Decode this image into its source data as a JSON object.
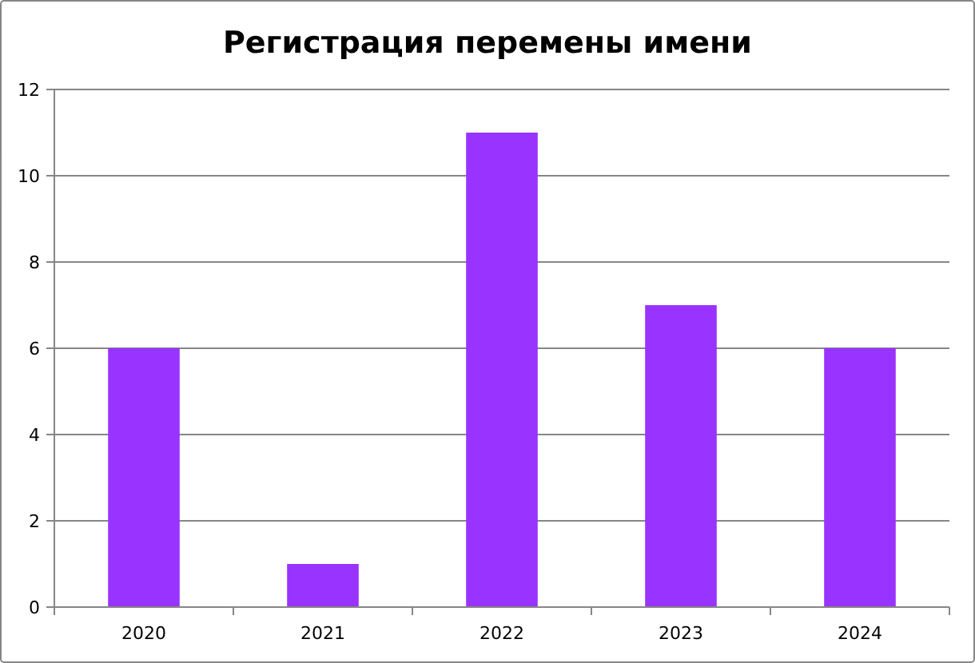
{
  "chart_data": {
    "type": "bar",
    "title": "Регистрация перемены имени",
    "categories": [
      "2020",
      "2021",
      "2022",
      "2023",
      "2024"
    ],
    "values": [
      6,
      1,
      11,
      7,
      6
    ],
    "color": "#9933ff",
    "ylim": [
      0,
      12
    ],
    "yticks": [
      0,
      2,
      4,
      6,
      8,
      10,
      12
    ],
    "grid": "y"
  }
}
